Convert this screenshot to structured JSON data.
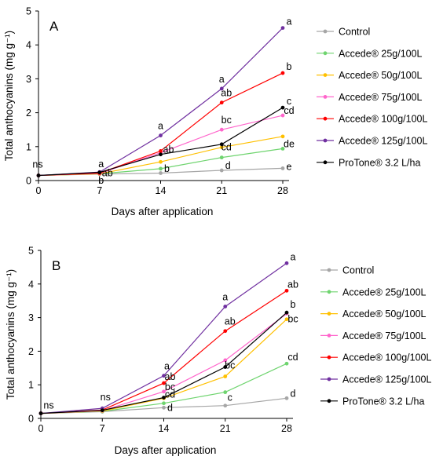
{
  "chart_data": [
    {
      "type": "line",
      "panel_label": "A",
      "x": [
        0,
        7,
        14,
        21,
        28
      ],
      "xlabel": "Days after application",
      "ylabel": "Total anthocyanins (mg g⁻¹)",
      "ylim": [
        0,
        5
      ],
      "yticks": [
        0,
        1,
        2,
        3,
        4,
        5
      ],
      "grid": false,
      "legend_position": "right",
      "series": [
        {
          "name": "Control",
          "color": "#a6a6a6",
          "values": [
            0.15,
            0.19,
            0.22,
            0.3,
            0.36
          ]
        },
        {
          "name": "Accede® 25g/100L",
          "color": "#6fd46f",
          "values": [
            0.15,
            0.2,
            0.35,
            0.68,
            0.94
          ]
        },
        {
          "name": "Accede® 50g/100L",
          "color": "#ffc000",
          "values": [
            0.15,
            0.2,
            0.55,
            0.98,
            1.3
          ]
        },
        {
          "name": "Accede® 75g/100L",
          "color": "#ff66cc",
          "values": [
            0.15,
            0.21,
            0.82,
            1.5,
            1.92
          ]
        },
        {
          "name": "Accede® 100g/100L",
          "color": "#ff0000",
          "values": [
            0.15,
            0.22,
            0.87,
            2.3,
            3.17
          ]
        },
        {
          "name": "Accede® 125g/100L",
          "color": "#7030a0",
          "values": [
            0.15,
            0.25,
            1.33,
            2.71,
            4.5
          ]
        },
        {
          "name": "ProTone® 3.2 L/ha",
          "color": "#000000",
          "values": [
            0.15,
            0.24,
            0.77,
            1.07,
            2.15
          ]
        }
      ],
      "annotations": [
        {
          "text": "ns",
          "x": 0,
          "y": 0.15,
          "dx": -1,
          "dy": -10
        },
        {
          "text": "a",
          "x": 7,
          "y": 0.25,
          "dx": 2,
          "dy": -6
        },
        {
          "text": "ab",
          "x": 7,
          "y": 0.22,
          "dx": 10,
          "dy": 4
        },
        {
          "text": "b",
          "x": 7,
          "y": 0.19,
          "dx": 2,
          "dy": 12
        },
        {
          "text": "a",
          "x": 14,
          "y": 1.33,
          "dx": 0,
          "dy": -8
        },
        {
          "text": "ab",
          "x": 14,
          "y": 0.77,
          "dx": 10,
          "dy": -2
        },
        {
          "text": "b",
          "x": 14,
          "y": 0.35,
          "dx": 8,
          "dy": 4
        },
        {
          "text": "a",
          "x": 21,
          "y": 2.71,
          "dx": 0,
          "dy": -8
        },
        {
          "text": "ab",
          "x": 21,
          "y": 2.3,
          "dx": 6,
          "dy": -8
        },
        {
          "text": "bc",
          "x": 21,
          "y": 1.5,
          "dx": 6,
          "dy": -8
        },
        {
          "text": "cd",
          "x": 21,
          "y": 0.98,
          "dx": 6,
          "dy": 4
        },
        {
          "text": "d",
          "x": 21,
          "y": 0.3,
          "dx": 8,
          "dy": -2
        },
        {
          "text": "a",
          "x": 28,
          "y": 4.5,
          "dx": 8,
          "dy": -4
        },
        {
          "text": "b",
          "x": 28,
          "y": 3.17,
          "dx": 8,
          "dy": -4
        },
        {
          "text": "c",
          "x": 28,
          "y": 2.15,
          "dx": 8,
          "dy": -4
        },
        {
          "text": "cd",
          "x": 28,
          "y": 1.92,
          "dx": 8,
          "dy": -2
        },
        {
          "text": "de",
          "x": 28,
          "y": 0.94,
          "dx": 8,
          "dy": -2
        },
        {
          "text": "e",
          "x": 28,
          "y": 0.36,
          "dx": 8,
          "dy": 2
        }
      ]
    },
    {
      "type": "line",
      "panel_label": "B",
      "x": [
        0,
        7,
        14,
        21,
        28
      ],
      "xlabel": "Days after application",
      "ylabel": "Total anthocyanins (mg g⁻¹)",
      "ylim": [
        0,
        5
      ],
      "yticks": [
        0,
        1,
        2,
        3,
        4,
        5
      ],
      "grid": false,
      "legend_position": "right",
      "series": [
        {
          "name": "Control",
          "color": "#a6a6a6",
          "values": [
            0.15,
            0.2,
            0.32,
            0.38,
            0.6
          ]
        },
        {
          "name": "Accede® 25g/100L",
          "color": "#6fd46f",
          "values": [
            0.15,
            0.21,
            0.45,
            0.78,
            1.63
          ]
        },
        {
          "name": "Accede® 50g/100L",
          "color": "#ffc000",
          "values": [
            0.15,
            0.22,
            0.6,
            1.25,
            2.95
          ]
        },
        {
          "name": "Accede® 75g/100L",
          "color": "#ff66cc",
          "values": [
            0.15,
            0.23,
            0.8,
            1.73,
            3.12
          ]
        },
        {
          "name": "Accede® 100g/100L",
          "color": "#ff0000",
          "values": [
            0.15,
            0.25,
            1.05,
            2.6,
            3.8
          ]
        },
        {
          "name": "Accede® 125g/100L",
          "color": "#7030a0",
          "values": [
            0.15,
            0.3,
            1.27,
            3.33,
            4.62
          ]
        },
        {
          "name": "ProTone® 3.2 L/ha",
          "color": "#000000",
          "values": [
            0.15,
            0.24,
            0.62,
            1.53,
            3.15
          ]
        }
      ],
      "annotations": [
        {
          "text": "ns",
          "x": 0,
          "y": 0.15,
          "dx": 10,
          "dy": -6
        },
        {
          "text": "ns",
          "x": 7,
          "y": 0.3,
          "dx": 4,
          "dy": -10
        },
        {
          "text": "a",
          "x": 14,
          "y": 1.27,
          "dx": 4,
          "dy": -8
        },
        {
          "text": "ab",
          "x": 14,
          "y": 1.05,
          "dx": 8,
          "dy": -4
        },
        {
          "text": "bc",
          "x": 14,
          "y": 0.8,
          "dx": 8,
          "dy": -2
        },
        {
          "text": "cd",
          "x": 14,
          "y": 0.62,
          "dx": 8,
          "dy": 0
        },
        {
          "text": "d",
          "x": 14,
          "y": 0.32,
          "dx": 8,
          "dy": 4
        },
        {
          "text": "a",
          "x": 21,
          "y": 3.33,
          "dx": 0,
          "dy": -8
        },
        {
          "text": "ab",
          "x": 21,
          "y": 2.6,
          "dx": 6,
          "dy": -8
        },
        {
          "text": "bc",
          "x": 21,
          "y": 1.53,
          "dx": 6,
          "dy": 2
        },
        {
          "text": "c",
          "x": 21,
          "y": 0.38,
          "dx": 6,
          "dy": -6
        },
        {
          "text": "a",
          "x": 28,
          "y": 4.62,
          "dx": 8,
          "dy": -4
        },
        {
          "text": "ab",
          "x": 28,
          "y": 3.8,
          "dx": 8,
          "dy": -4
        },
        {
          "text": "b",
          "x": 28,
          "y": 3.15,
          "dx": 8,
          "dy": -6
        },
        {
          "text": "bc",
          "x": 28,
          "y": 2.95,
          "dx": 8,
          "dy": 4
        },
        {
          "text": "cd",
          "x": 28,
          "y": 1.63,
          "dx": 8,
          "dy": -4
        },
        {
          "text": "d",
          "x": 28,
          "y": 0.6,
          "dx": 8,
          "dy": -2
        }
      ]
    }
  ]
}
